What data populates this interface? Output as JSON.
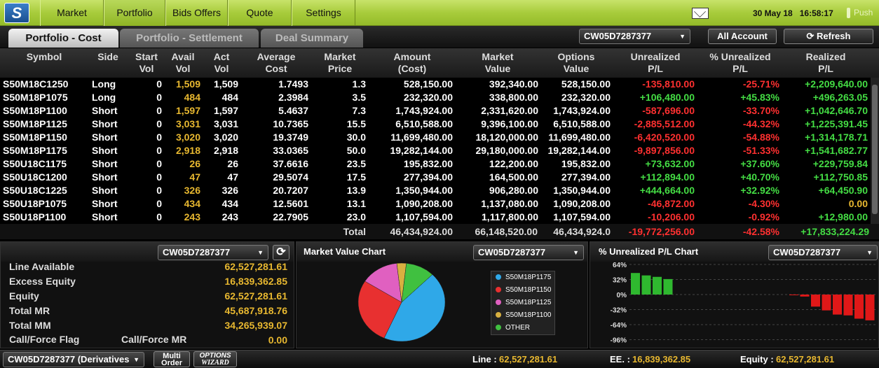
{
  "nav": {
    "items": [
      "Market",
      "Portfolio",
      "Bids Offers",
      "Quote",
      "Settings"
    ],
    "date": "30 May 18",
    "time": "16:58:17",
    "push": "Push"
  },
  "tabs": [
    "Portfolio - Cost",
    "Portfolio - Settlement",
    "Deal Summary"
  ],
  "account_select": "CW05D7287377",
  "all_account": "All Account",
  "refresh": "Refresh",
  "columns": [
    [
      "Symbol",
      ""
    ],
    [
      "Side",
      ""
    ],
    [
      "Start",
      "Vol"
    ],
    [
      "Avail",
      "Vol"
    ],
    [
      "Act",
      "Vol"
    ],
    [
      "Average",
      "Cost"
    ],
    [
      "Market",
      "Price"
    ],
    [
      "Amount",
      "(Cost)"
    ],
    [
      "Market",
      "Value"
    ],
    [
      "Options",
      "Value"
    ],
    [
      "Unrealized",
      "P/L"
    ],
    [
      "% Unrealized",
      "P/L"
    ],
    [
      "Realized",
      "P/L"
    ]
  ],
  "rows": [
    [
      "S50M18C1250",
      "Long",
      "0",
      "1,509",
      "1,509",
      "1.7493",
      "1.3",
      "528,150.00",
      "392,340.00",
      "528,150.00",
      "-135,810.00",
      "-25.71%",
      "+2,209,640.00"
    ],
    [
      "S50M18P1075",
      "Long",
      "0",
      "484",
      "484",
      "2.3984",
      "3.5",
      "232,320.00",
      "338,800.00",
      "232,320.00",
      "+106,480.00",
      "+45.83%",
      "+496,263.05"
    ],
    [
      "S50M18P1100",
      "Short",
      "0",
      "1,597",
      "1,597",
      "5.4637",
      "7.3",
      "1,743,924.00",
      "2,331,620.00",
      "1,743,924.00",
      "-587,696.00",
      "-33.70%",
      "+1,042,646.70"
    ],
    [
      "S50M18P1125",
      "Short",
      "0",
      "3,031",
      "3,031",
      "10.7365",
      "15.5",
      "6,510,588.00",
      "9,396,100.00",
      "6,510,588.00",
      "-2,885,512.00",
      "-44.32%",
      "+1,225,391.45"
    ],
    [
      "S50M18P1150",
      "Short",
      "0",
      "3,020",
      "3,020",
      "19.3749",
      "30.0",
      "11,699,480.00",
      "18,120,000.00",
      "11,699,480.00",
      "-6,420,520.00",
      "-54.88%",
      "+1,314,178.71"
    ],
    [
      "S50M18P1175",
      "Short",
      "0",
      "2,918",
      "2,918",
      "33.0365",
      "50.0",
      "19,282,144.00",
      "29,180,000.00",
      "19,282,144.00",
      "-9,897,856.00",
      "-51.33%",
      "+1,541,682.77"
    ],
    [
      "S50U18C1175",
      "Short",
      "0",
      "26",
      "26",
      "37.6616",
      "23.5",
      "195,832.00",
      "122,200.00",
      "195,832.00",
      "+73,632.00",
      "+37.60%",
      "+229,759.84"
    ],
    [
      "S50U18C1200",
      "Short",
      "0",
      "47",
      "47",
      "29.5074",
      "17.5",
      "277,394.00",
      "164,500.00",
      "277,394.00",
      "+112,894.00",
      "+40.70%",
      "+112,750.85"
    ],
    [
      "S50U18C1225",
      "Short",
      "0",
      "326",
      "326",
      "20.7207",
      "13.9",
      "1,350,944.00",
      "906,280.00",
      "1,350,944.00",
      "+444,664.00",
      "+32.92%",
      "+64,450.90"
    ],
    [
      "S50U18P1075",
      "Short",
      "0",
      "434",
      "434",
      "12.5601",
      "13.1",
      "1,090,208.00",
      "1,137,080.00",
      "1,090,208.00",
      "-46,872.00",
      "-4.30%",
      "0.00"
    ],
    [
      "S50U18P1100",
      "Short",
      "0",
      "243",
      "243",
      "22.7905",
      "23.0",
      "1,107,594.00",
      "1,117,800.00",
      "1,107,594.00",
      "-10,206.00",
      "-0.92%",
      "+12,980.00"
    ]
  ],
  "total": {
    "label": "Total",
    "amount": "46,434,924.00",
    "market_value": "66,148,520.00",
    "options_value": "46,434,924.0",
    "unrealized": "-19,772,256.00",
    "pct": "-42.58%",
    "realized": "+17,833,224.29"
  },
  "account_panel": {
    "select": "CW05D7287377",
    "items": [
      {
        "label": "Line Available",
        "value": "62,527,281.61"
      },
      {
        "label": "Excess Equity",
        "value": "16,839,362.85"
      },
      {
        "label": "Equity",
        "value": "62,527,281.61"
      },
      {
        "label": "Total MR",
        "value": "45,687,918.76"
      },
      {
        "label": "Total MM",
        "value": "34,265,939.07"
      }
    ],
    "flag_label": "Call/Force Flag",
    "mr_label": "Call/Force MR",
    "mr_value": "0.00"
  },
  "mv_chart": {
    "title": "Market Value Chart",
    "select": "CW05D7287377",
    "legend": [
      {
        "name": "S50M18P1175",
        "color": "#2fa8e8"
      },
      {
        "name": "S50M18P1150",
        "color": "#e83030"
      },
      {
        "name": "S50M18P1125",
        "color": "#e060c0"
      },
      {
        "name": "S50M18P1100",
        "color": "#d8b040"
      },
      {
        "name": "OTHER",
        "color": "#40c040"
      }
    ]
  },
  "chart_data": {
    "type": "pie",
    "title": "Market Value Chart",
    "categories": [
      "S50M18P1175",
      "S50M18P1150",
      "S50M18P1125",
      "S50M18P1100",
      "OTHER"
    ],
    "values": [
      29180000,
      18120000,
      9396100,
      2331620,
      7120800
    ]
  },
  "pl_chart": {
    "title": "% Unrealized P/L Chart",
    "select": "CW05D7287377",
    "ticks": [
      "64%",
      "32%",
      "0%",
      "-32%",
      "-64%",
      "-96%"
    ],
    "values": [
      45.83,
      40.7,
      37.6,
      32.92,
      -0.92,
      -4.3,
      -25.71,
      -33.7,
      -42.58,
      -44.32,
      -51.33,
      -54.88
    ],
    "pos_color": "#2fb82f",
    "neg_color": "#e01818"
  },
  "bottom": {
    "account": "CW05D7287377 (Derivatives",
    "multi_order": [
      "Multi",
      "Order"
    ],
    "options_wizard": [
      "OPTIONS",
      "WIZARD"
    ],
    "line_label": "Line :",
    "line_value": "62,527,281.61",
    "ee_label": "EE. :",
    "ee_value": "16,839,362.85",
    "equity_label": "Equity :",
    "equity_value": "62,527,281.61"
  }
}
